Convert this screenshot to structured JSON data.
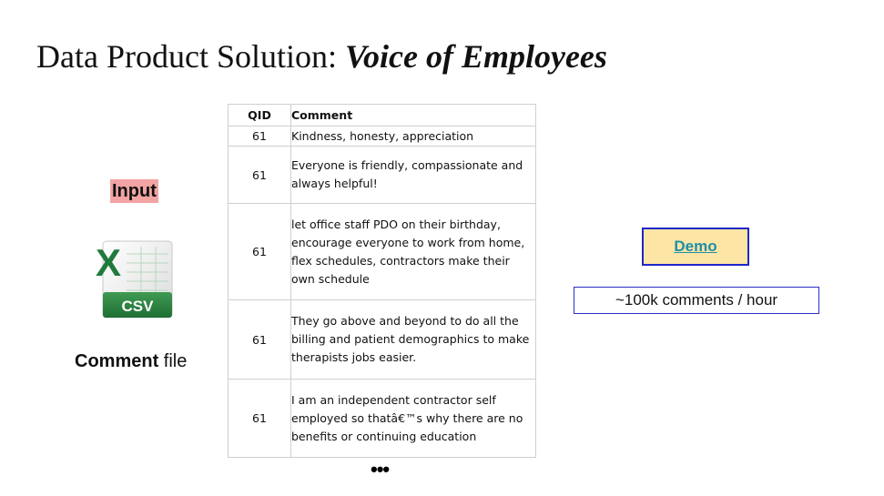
{
  "title": {
    "prefix": "Data Product Solution: ",
    "emphasis": "Voice of Employees"
  },
  "input_label": "Input",
  "file": {
    "icon": "excel-csv-file-icon",
    "icon_text": "CSV",
    "label_bold": "Comment",
    "label_rest": " file"
  },
  "table": {
    "headers": {
      "qid": "QID",
      "comment": "Comment"
    },
    "rows": [
      {
        "qid": "61",
        "comment": "Kindness, honesty, appreciation"
      },
      {
        "qid": "61",
        "comment": "Everyone is friendly, compassionate and always helpful!"
      },
      {
        "qid": "61",
        "comment": "let office staff PDO on their birthday, encourage everyone to work from home, flex schedules, contractors make their own schedule"
      },
      {
        "qid": "61",
        "comment": "They go above and beyond to do all the billing and patient demographics to make therapists jobs easier."
      },
      {
        "qid": "61",
        "comment": "I am an independent contractor self employed so thatâ€™s why there are no benefits or continuing education"
      }
    ],
    "more": "•••"
  },
  "demo_button": {
    "label": "Demo"
  },
  "throughput": "~100k comments / hour",
  "colors": {
    "input_highlight": "#f2a3a3",
    "demo_bg": "#fde5a6",
    "demo_border": "#1f27c9",
    "demo_text": "#1f8fa8",
    "excel_green": "#1f7a3c"
  }
}
